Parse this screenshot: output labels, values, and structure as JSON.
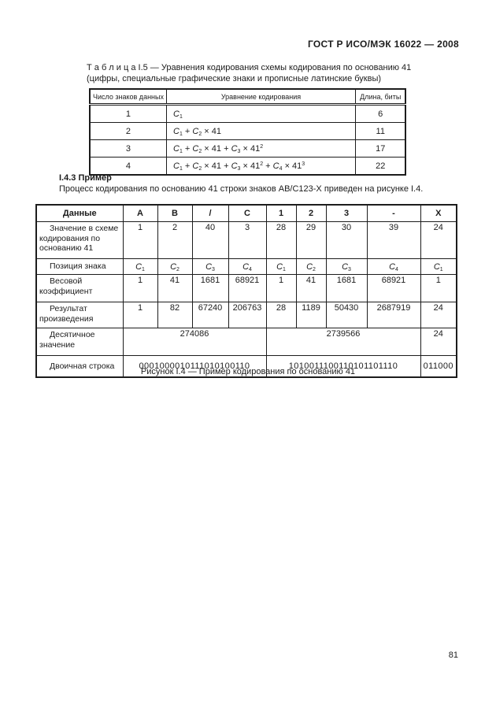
{
  "doc": {
    "header": "ГОСТ Р ИСО/МЭК 16022 — 2008",
    "page_number": "81",
    "section_heading": "I.4.3 Пример",
    "section_paragraph": "Процесс кодирования по основанию 41 строки знаков AB/C123-X приведен на рисунке I.4.",
    "figure_caption": "Рисунок I.4 — Пример кодирования по основанию 41"
  },
  "table1": {
    "caption_line1": "Т а б л и ц а  I.5 — Уравнения кодирования схемы кодирования по основанию 41",
    "caption_line2": "(цифры, специальные графические знаки и прописные латинские буквы)",
    "col_headers": [
      "Число знаков данных",
      "Уравнение кодирования",
      "Длина, биты"
    ],
    "rows": [
      {
        "count": "1",
        "equation": "*C*_1_",
        "bits": "6"
      },
      {
        "count": "2",
        "equation": "*C*_1_ + *C*_2_ × 41",
        "bits": "11"
      },
      {
        "count": "3",
        "equation": "*C*_1_ + *C*_2_ × 41 + *C*_3_ × 41^2^",
        "bits": "17"
      },
      {
        "count": "4",
        "equation": "*C*_1_ + *C*_2_ × 41 + *C*_3_ × 41^2^ + *C*_4_ × 41^3^",
        "bits": "22"
      }
    ]
  },
  "table2": {
    "col_headers": [
      "Данные",
      "A",
      "B",
      "/",
      "C",
      "1",
      "2",
      "3",
      "-",
      "X"
    ],
    "row_values": {
      "label": "Значение в схеме кодирования по основанию 41",
      "cells": [
        "1",
        "2",
        "40",
        "3",
        "28",
        "29",
        "30",
        "39",
        "24"
      ]
    },
    "row_positions": {
      "label": "Позиция знака",
      "cells": [
        "*C*_1_",
        "*C*_2_",
        "*C*_3_",
        "*C*_4_",
        "*C*_1_",
        "*C*_2_",
        "*C*_3_",
        "*C*_4_",
        "*C*_1_"
      ]
    },
    "row_weights": {
      "label": "Весовой коэффициент",
      "cells": [
        "1",
        "41",
        "1681",
        "68921",
        "1",
        "41",
        "1681",
        "68921",
        "1"
      ]
    },
    "row_products": {
      "label": "Результат произведения",
      "cells": [
        "1",
        "82",
        "67240",
        "206763",
        "28",
        "1189",
        "50430",
        "2687919",
        "24"
      ]
    },
    "row_decimal": {
      "label": "Десятичное значение",
      "cells": [
        "274086",
        "2739566",
        "24"
      ]
    },
    "row_binary": {
      "label": "Двоичная строка",
      "cells": [
        "0001000010111010100110",
        "1010011100110101101110",
        "011000"
      ]
    }
  }
}
